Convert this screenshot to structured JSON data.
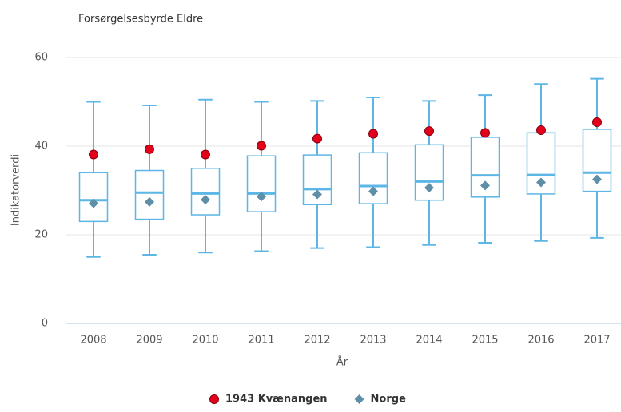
{
  "chart_data": {
    "type": "box",
    "title": "Forsørgelsesbyrde Eldre",
    "x_label": "År",
    "y_label": "Indikatorverdi",
    "categories": [
      "2008",
      "2009",
      "2010",
      "2011",
      "2012",
      "2013",
      "2014",
      "2015",
      "2016",
      "2017"
    ],
    "boxes": {
      "color": "#5cb6e6",
      "min": [
        15,
        15.5,
        16,
        16.3,
        17,
        17.2,
        17.7,
        18.2,
        18.6,
        19.3
      ],
      "q1": [
        23,
        23.5,
        24.5,
        25.2,
        26.8,
        27,
        27.8,
        28.5,
        29.2,
        29.8
      ],
      "median": [
        27.8,
        29.5,
        29.3,
        29.3,
        30.3,
        31,
        32,
        33.4,
        33.5,
        34
      ],
      "q3": [
        34,
        34.5,
        35,
        37.8,
        38,
        38.5,
        40.3,
        42,
        43,
        43.8
      ],
      "max": [
        50,
        49.2,
        50.5,
        50,
        50.2,
        51,
        50.2,
        51.5,
        54,
        55.2
      ]
    },
    "series": [
      {
        "name": "1943 Kvænangen",
        "color": "#e3001b",
        "marker": "circle",
        "values": [
          38.1,
          39.3,
          38.1,
          40.1,
          41.7,
          42.8,
          43.4,
          43.0,
          43.6,
          45.4
        ]
      },
      {
        "name": "Norge",
        "color": "#5f8fa6",
        "marker": "diamond",
        "values": [
          27.1,
          27.4,
          27.9,
          28.6,
          29.1,
          29.8,
          30.6,
          31.1,
          31.8,
          32.5
        ]
      }
    ],
    "ylim": [
      0,
      60
    ],
    "yticks": [
      0,
      20,
      40,
      60
    ],
    "grid": true,
    "legend": "bottom"
  }
}
